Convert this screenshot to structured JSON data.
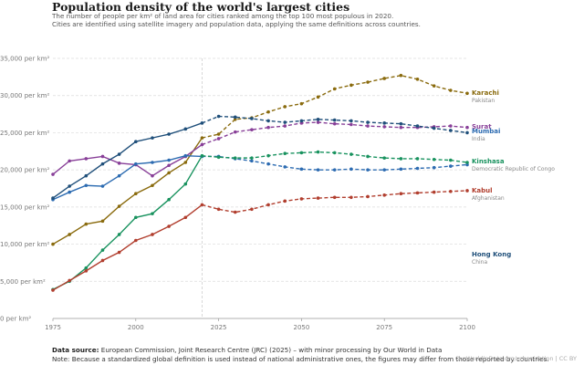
{
  "header": {
    "title": "Population density of the world's largest cities",
    "subtitle_1": "The number of people per km² of land area for cities ranked among the top 100 most populous in 2020.",
    "subtitle_2": "Cities are identified using satellite imagery and population data, applying the same definitions across countries."
  },
  "footer": {
    "source_label": "Data source:",
    "source_text": "European Commission, Joint Research Centre (JRC) (2025) – with minor processing by Our World in Data",
    "note": "Note: Because a standardized global definition is used instead of national administrative ones, the figures may differ from those reported by countries.",
    "credit": "OurWorldinData.org/urbanization | CC BY"
  },
  "chart_data": {
    "type": "line",
    "title": "Population density of the world's largest cities",
    "xlabel": "",
    "ylabel": "",
    "xlim": [
      1975,
      2100
    ],
    "ylim": [
      0,
      35000
    ],
    "x_ticks": [
      1975,
      2000,
      2025,
      2050,
      2075,
      2100
    ],
    "y_ticks": [
      0,
      5000,
      10000,
      15000,
      20000,
      25000,
      30000,
      35000
    ],
    "y_tick_labels": [
      "0 per km²",
      "5,000 per km²",
      "10,000 per km²",
      "15,000 per km²",
      "20,000 per km²",
      "25,000 per km²",
      "30,000 per km²",
      "35,000 per km²"
    ],
    "projection_start": 2020,
    "grid": "horizontal dashed",
    "legend": "right, inline labels",
    "x": [
      1975,
      1980,
      1985,
      1990,
      1995,
      2000,
      2005,
      2010,
      2015,
      2020,
      2025,
      2030,
      2035,
      2040,
      2045,
      2050,
      2055,
      2060,
      2065,
      2070,
      2075,
      2080,
      2085,
      2090,
      2095,
      2100
    ],
    "series": [
      {
        "name": "Karachi",
        "sub": "Pakistan",
        "color": "#8a6b0e",
        "values": [
          10000,
          11300,
          12700,
          13100,
          15100,
          16800,
          17900,
          19600,
          21000,
          24300,
          24800,
          26800,
          27000,
          27800,
          28500,
          28900,
          29800,
          30900,
          31400,
          31800,
          32300,
          32700,
          32200,
          31300,
          30700,
          30300
        ]
      },
      {
        "name": "Surat",
        "sub": "",
        "color": "#883f98",
        "values": [
          19400,
          21200,
          21500,
          21800,
          20900,
          20700,
          19200,
          20600,
          21800,
          23400,
          24200,
          25100,
          25400,
          25700,
          25900,
          26300,
          26400,
          26200,
          26100,
          25900,
          25800,
          25700,
          25700,
          25800,
          25900,
          25700
        ]
      },
      {
        "name": "Mumbai",
        "sub": "India",
        "color": "#2c6bb1",
        "values": [
          16000,
          17000,
          17900,
          17800,
          19200,
          20800,
          21000,
          21300,
          21900,
          21800,
          21800,
          21500,
          21200,
          20800,
          20400,
          20100,
          20000,
          20000,
          20100,
          20000,
          20000,
          20100,
          20200,
          20300,
          20500,
          20700
        ]
      },
      {
        "name": "Kinshasa",
        "sub": "Democratic Republic of Congo",
        "color": "#18925e",
        "values": [
          3900,
          5000,
          6800,
          9200,
          11300,
          13600,
          14100,
          16000,
          18100,
          21900,
          21700,
          21600,
          21600,
          21900,
          22200,
          22300,
          22400,
          22300,
          22100,
          21800,
          21600,
          21500,
          21500,
          21400,
          21300,
          21000
        ]
      },
      {
        "name": "Kabul",
        "sub": "Afghanistan",
        "color": "#b13e2e",
        "values": [
          3800,
          5100,
          6400,
          7800,
          8900,
          10500,
          11300,
          12400,
          13600,
          15300,
          14700,
          14300,
          14700,
          15300,
          15800,
          16100,
          16200,
          16300,
          16300,
          16400,
          16600,
          16800,
          16900,
          17000,
          17100,
          17200
        ]
      },
      {
        "name": "Hong Kong",
        "sub": "China",
        "color": "#1f4f7a",
        "values": [
          16200,
          17800,
          19200,
          20800,
          22100,
          23800,
          24300,
          24800,
          25500,
          26300,
          27200,
          27100,
          26900,
          26600,
          26400,
          26600,
          26800,
          26700,
          26600,
          26400,
          26300,
          26200,
          25900,
          25600,
          25300,
          25000
        ]
      }
    ]
  }
}
